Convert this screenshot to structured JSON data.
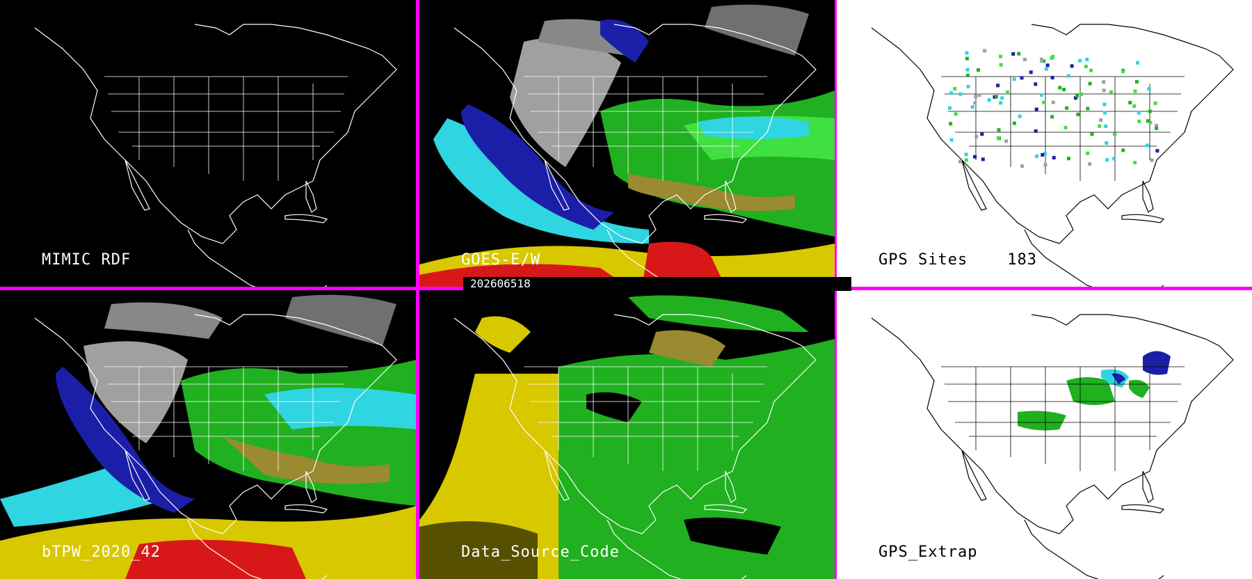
{
  "timestamp": "202606518",
  "colors": {
    "divider": "#ff00ff",
    "dark_bg": "#000000",
    "light_bg": "#ffffff",
    "coast_dark": "#ffffff",
    "coast_light": "#000000",
    "tpw_dry": "#1b1fa8",
    "tpw_low": "#2fd5e0",
    "tpw_mid": "#20b020",
    "tpw_mid_light": "#40e040",
    "tpw_high": "#d8c800",
    "tpw_veryhigh": "#d81818",
    "tpw_olive": "#9a8a30",
    "cloud_gray": "#a0a0a0"
  },
  "panels": [
    {
      "id": "mimic",
      "label": "MIMIC RDF",
      "theme": "dark",
      "icon": "map-icon"
    },
    {
      "id": "goes",
      "label": "GOES-E/W",
      "theme": "dark",
      "icon": "satellite-map-icon"
    },
    {
      "id": "gps",
      "label": "GPS Sites",
      "count": "183",
      "theme": "light",
      "icon": "gps-sites-map-icon"
    },
    {
      "id": "btpw",
      "label": "bTPW_2020_42",
      "theme": "dark",
      "icon": "blended-tpw-map-icon"
    },
    {
      "id": "dsc",
      "label": "Data_Source_Code",
      "theme": "dark",
      "icon": "data-source-map-icon"
    },
    {
      "id": "gpsx",
      "label": "GPS_Extrap",
      "theme": "light",
      "icon": "gps-extrap-map-icon"
    }
  ]
}
